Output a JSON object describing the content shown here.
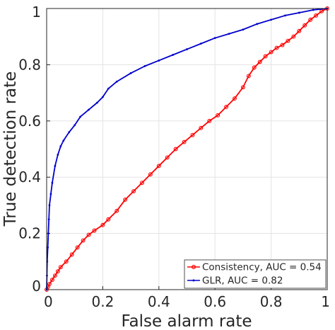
{
  "chart_data": {
    "type": "line",
    "xlabel": "False alarm rate",
    "ylabel": "True detection rate",
    "xlim": [
      0,
      1
    ],
    "ylim": [
      0,
      1
    ],
    "xticks": [
      "0",
      "0.2",
      "0.4",
      "0.6",
      "0.8",
      "1"
    ],
    "yticks": [
      "0",
      "0.2",
      "0.4",
      "0.6",
      "0.8",
      "1"
    ],
    "grid": true,
    "legend_position": "bottom-right",
    "series": [
      {
        "name": "Consistency, AUC = 0.54",
        "color": "#ff0000",
        "marker": "circle",
        "x": [
          0,
          0.005,
          0.01,
          0.02,
          0.03,
          0.04,
          0.05,
          0.07,
          0.09,
          0.11,
          0.13,
          0.15,
          0.17,
          0.2,
          0.22,
          0.25,
          0.28,
          0.31,
          0.34,
          0.37,
          0.4,
          0.43,
          0.46,
          0.49,
          0.52,
          0.55,
          0.58,
          0.61,
          0.64,
          0.67,
          0.7,
          0.72,
          0.74,
          0.76,
          0.78,
          0.8,
          0.82,
          0.84,
          0.86,
          0.88,
          0.9,
          0.92,
          0.94,
          0.96,
          0.98,
          1.0
        ],
        "y": [
          0,
          0.01,
          0.02,
          0.035,
          0.05,
          0.065,
          0.08,
          0.1,
          0.125,
          0.15,
          0.175,
          0.195,
          0.21,
          0.23,
          0.25,
          0.28,
          0.32,
          0.35,
          0.38,
          0.41,
          0.44,
          0.47,
          0.5,
          0.525,
          0.55,
          0.575,
          0.6,
          0.62,
          0.65,
          0.68,
          0.72,
          0.76,
          0.79,
          0.81,
          0.83,
          0.845,
          0.86,
          0.87,
          0.885,
          0.9,
          0.92,
          0.94,
          0.96,
          0.975,
          0.99,
          1.0
        ]
      },
      {
        "name": "GLR, AUC = 0.82",
        "color": "#0000cc",
        "marker": "point",
        "x": [
          0,
          0.001,
          0.002,
          0.004,
          0.006,
          0.008,
          0.01,
          0.015,
          0.02,
          0.03,
          0.04,
          0.05,
          0.06,
          0.08,
          0.1,
          0.12,
          0.15,
          0.18,
          0.2,
          0.22,
          0.25,
          0.3,
          0.35,
          0.4,
          0.45,
          0.5,
          0.55,
          0.6,
          0.65,
          0.7,
          0.75,
          0.8,
          0.85,
          0.9,
          0.95,
          1.0
        ],
        "y": [
          0,
          0.05,
          0.1,
          0.15,
          0.2,
          0.25,
          0.3,
          0.34,
          0.38,
          0.44,
          0.48,
          0.51,
          0.53,
          0.56,
          0.585,
          0.615,
          0.64,
          0.665,
          0.685,
          0.715,
          0.74,
          0.77,
          0.795,
          0.815,
          0.835,
          0.855,
          0.875,
          0.895,
          0.91,
          0.925,
          0.945,
          0.96,
          0.975,
          0.985,
          0.995,
          1.0
        ]
      }
    ]
  }
}
